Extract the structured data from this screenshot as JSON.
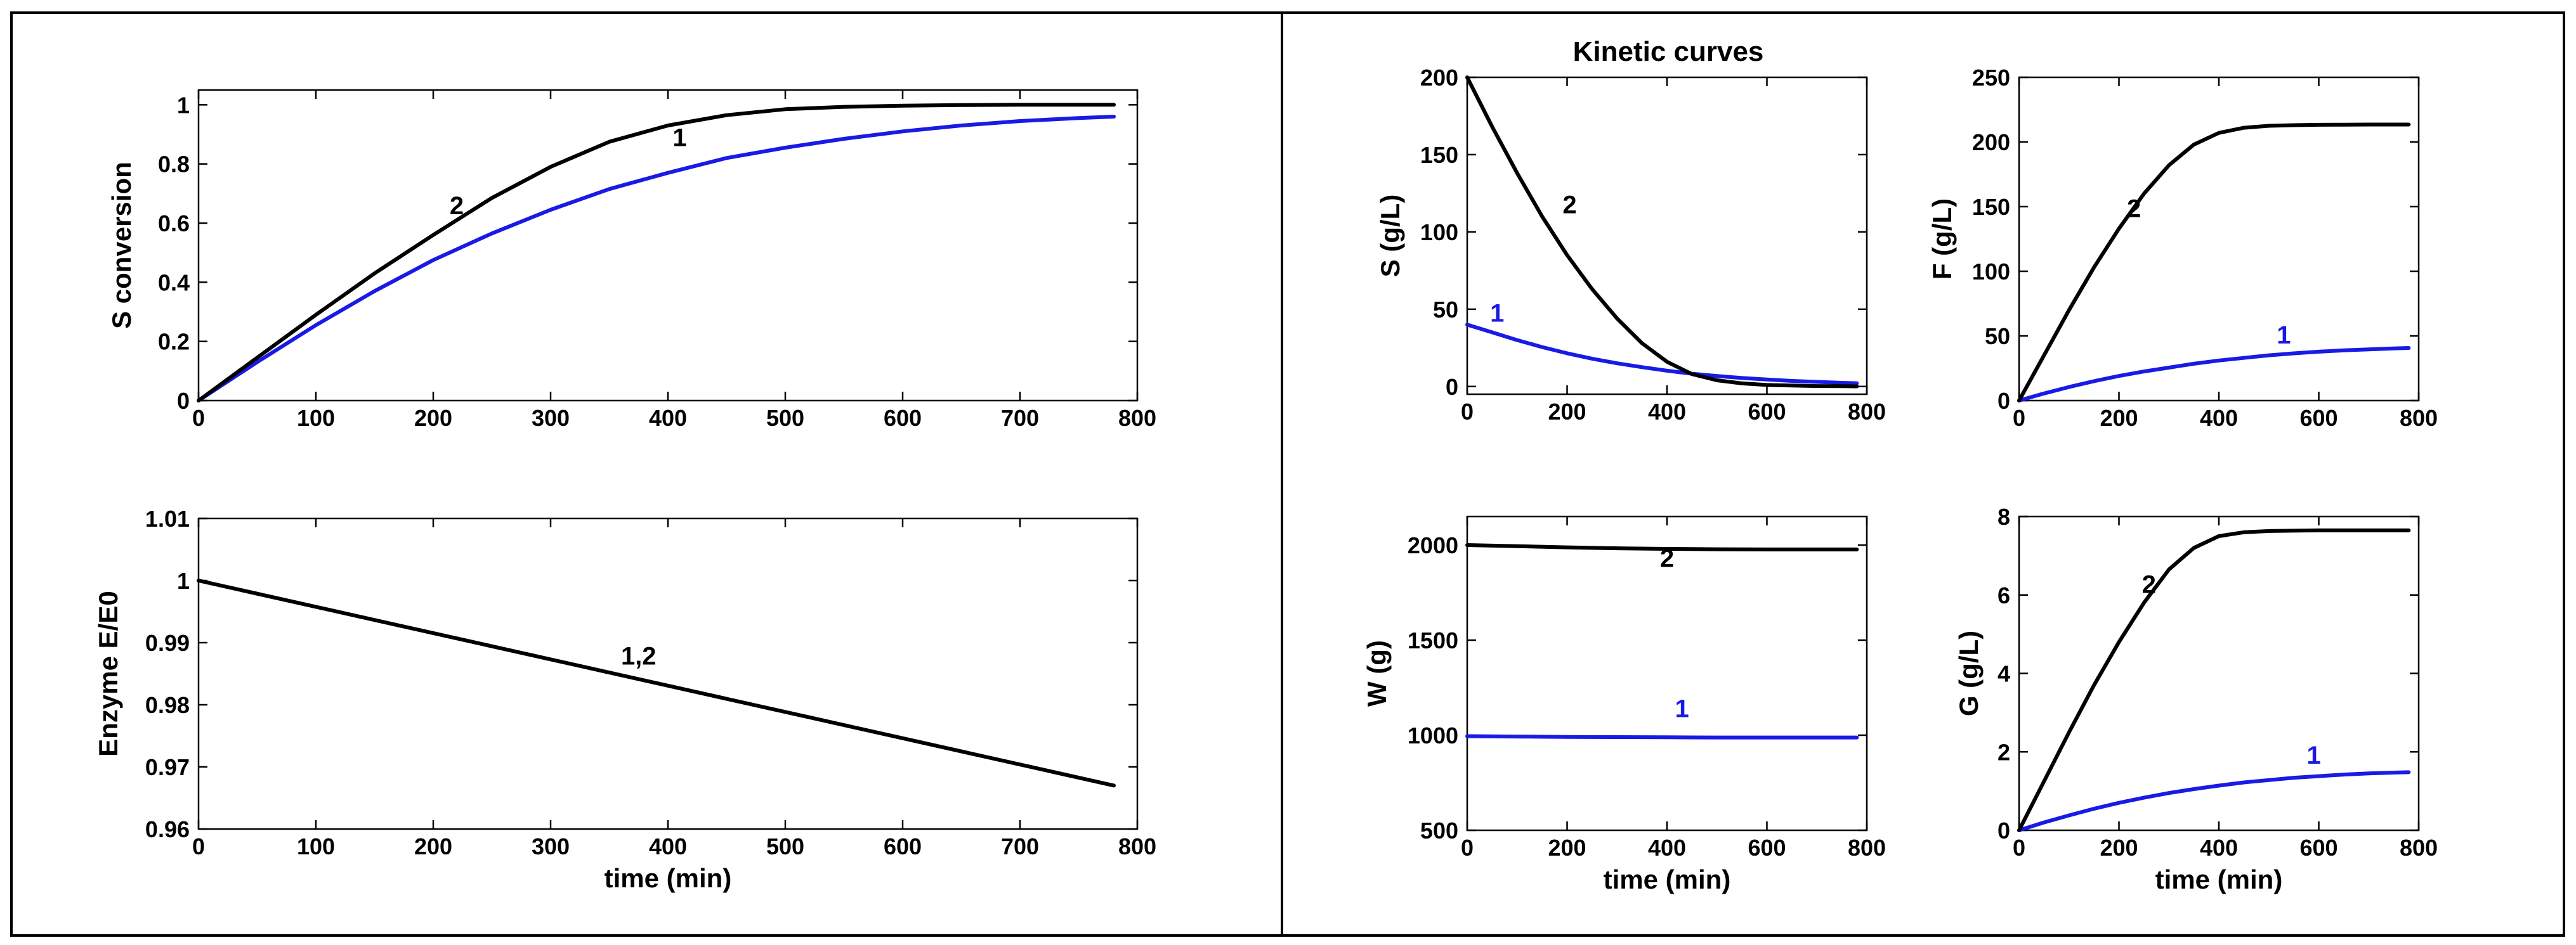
{
  "figure": {
    "title": "Kinetic curves",
    "colors": {
      "series1": "#1a1ae6",
      "series2": "#000000",
      "axis": "#000000",
      "background": "#ffffff"
    }
  },
  "chart_data": [
    {
      "id": "s_conversion",
      "type": "line",
      "title": "",
      "xlabel": "",
      "ylabel": "S conversion",
      "xlim": [
        0,
        800
      ],
      "ylim": [
        0,
        1.05
      ],
      "xticks": [
        0,
        100,
        200,
        300,
        400,
        500,
        600,
        700,
        800
      ],
      "yticks": [
        0,
        0.2,
        0.4,
        0.6,
        0.8,
        1
      ],
      "x": [
        0,
        50,
        100,
        150,
        200,
        250,
        300,
        350,
        400,
        450,
        500,
        550,
        600,
        650,
        700,
        750,
        780
      ],
      "series": [
        {
          "name": "1",
          "color": "#1a1ae6",
          "values": [
            0,
            0.13,
            0.255,
            0.37,
            0.475,
            0.565,
            0.645,
            0.715,
            0.77,
            0.82,
            0.855,
            0.885,
            0.91,
            0.93,
            0.945,
            0.955,
            0.96
          ]
        },
        {
          "name": "2",
          "color": "#000000",
          "values": [
            0,
            0.145,
            0.29,
            0.43,
            0.56,
            0.685,
            0.79,
            0.875,
            0.93,
            0.965,
            0.985,
            0.993,
            0.997,
            0.999,
            1.0,
            1.0,
            1.0
          ]
        }
      ],
      "annotations": [
        {
          "text": "2",
          "x": 220,
          "y": 0.63,
          "color": "#000000"
        },
        {
          "text": "1",
          "x": 410,
          "y": 0.86,
          "color": "#000000"
        }
      ]
    },
    {
      "id": "enzyme",
      "type": "line",
      "title": "",
      "xlabel": "time (min)",
      "ylabel": "Enzyme E/E0",
      "xlim": [
        0,
        800
      ],
      "ylim": [
        0.96,
        1.01
      ],
      "xticks": [
        0,
        100,
        200,
        300,
        400,
        500,
        600,
        700,
        800
      ],
      "yticks": [
        0.96,
        0.97,
        0.98,
        0.99,
        1,
        1.01
      ],
      "x": [
        0,
        780
      ],
      "series": [
        {
          "name": "1,2",
          "color": "#000000",
          "values": [
            1.0,
            0.967
          ]
        }
      ],
      "annotations": [
        {
          "text": "1,2",
          "x": 375,
          "y": 0.9865,
          "color": "#000000"
        }
      ]
    },
    {
      "id": "S",
      "type": "line",
      "title": "Kinetic curves",
      "xlabel": "",
      "ylabel": "S (g/L)",
      "xlim": [
        0,
        800
      ],
      "ylim": [
        -5,
        200
      ],
      "xticks": [
        0,
        200,
        400,
        600,
        800
      ],
      "yticks": [
        0,
        50,
        100,
        150,
        200
      ],
      "x": [
        0,
        50,
        100,
        150,
        200,
        250,
        300,
        350,
        400,
        450,
        500,
        550,
        600,
        650,
        700,
        750,
        780
      ],
      "series": [
        {
          "name": "1",
          "color": "#1a1ae6",
          "values": [
            40,
            35,
            30,
            25.5,
            21.5,
            18,
            15,
            12.5,
            10.2,
            8.3,
            6.8,
            5.5,
            4.5,
            3.6,
            3.0,
            2.4,
            2.1
          ]
        },
        {
          "name": "2",
          "color": "#000000",
          "values": [
            200,
            168,
            138,
            110,
            85,
            63,
            44,
            28,
            16,
            8,
            4,
            2,
            1,
            0.6,
            0.3,
            0.2,
            0.1
          ]
        }
      ],
      "annotations": [
        {
          "text": "2",
          "x": 205,
          "y": 112,
          "color": "#000000"
        },
        {
          "text": "1",
          "x": 60,
          "y": 42,
          "color": "#1a1ae6"
        }
      ]
    },
    {
      "id": "F",
      "type": "line",
      "title": "",
      "xlabel": "",
      "ylabel": "F (g/L)",
      "xlim": [
        0,
        800
      ],
      "ylim": [
        0,
        250
      ],
      "xticks": [
        0,
        200,
        400,
        600,
        800
      ],
      "yticks": [
        0,
        50,
        100,
        150,
        200,
        250
      ],
      "x": [
        0,
        50,
        100,
        150,
        200,
        250,
        300,
        350,
        400,
        450,
        500,
        550,
        600,
        650,
        700,
        750,
        780
      ],
      "series": [
        {
          "name": "1",
          "color": "#1a1ae6",
          "values": [
            0,
            5.5,
            10.5,
            15,
            19,
            22.5,
            25.5,
            28.5,
            31,
            33,
            35,
            36.5,
            37.8,
            38.8,
            39.6,
            40.3,
            40.7
          ]
        },
        {
          "name": "2",
          "color": "#000000",
          "values": [
            0,
            35,
            70,
            103,
            133,
            160,
            182,
            198,
            207,
            211,
            212.5,
            213,
            213.3,
            213.4,
            213.5,
            213.5,
            213.5
          ]
        }
      ],
      "annotations": [
        {
          "text": "2",
          "x": 230,
          "y": 142,
          "color": "#000000"
        },
        {
          "text": "1",
          "x": 530,
          "y": 44,
          "color": "#1a1ae6"
        }
      ]
    },
    {
      "id": "W",
      "type": "line",
      "title": "",
      "xlabel": "time (min)",
      "ylabel": "W (g)",
      "xlim": [
        0,
        800
      ],
      "ylim": [
        500,
        2150
      ],
      "xticks": [
        0,
        200,
        400,
        600,
        800
      ],
      "yticks": [
        500,
        1000,
        1500,
        2000
      ],
      "x": [
        0,
        100,
        200,
        300,
        400,
        500,
        600,
        700,
        780
      ],
      "series": [
        {
          "name": "1",
          "color": "#1a1ae6",
          "values": [
            995,
            993,
            991,
            990,
            989,
            988,
            988,
            988,
            988
          ]
        },
        {
          "name": "2",
          "color": "#000000",
          "values": [
            2000,
            1994,
            1988,
            1983,
            1980,
            1978,
            1977,
            1977,
            1977
          ]
        }
      ],
      "annotations": [
        {
          "text": "2",
          "x": 400,
          "y": 1885,
          "color": "#000000"
        },
        {
          "text": "1",
          "x": 430,
          "y": 1095,
          "color": "#1a1ae6"
        }
      ]
    },
    {
      "id": "G",
      "type": "line",
      "title": "",
      "xlabel": "time (min)",
      "ylabel": "G (g/L)",
      "xlim": [
        0,
        800
      ],
      "ylim": [
        0,
        8
      ],
      "xticks": [
        0,
        200,
        400,
        600,
        800
      ],
      "yticks": [
        0,
        2,
        4,
        6,
        8
      ],
      "x": [
        0,
        50,
        100,
        150,
        200,
        250,
        300,
        350,
        400,
        450,
        500,
        550,
        600,
        650,
        700,
        750,
        780
      ],
      "series": [
        {
          "name": "1",
          "color": "#1a1ae6",
          "values": [
            0,
            0.2,
            0.38,
            0.55,
            0.7,
            0.83,
            0.95,
            1.05,
            1.14,
            1.22,
            1.28,
            1.34,
            1.38,
            1.42,
            1.45,
            1.47,
            1.48
          ]
        },
        {
          "name": "2",
          "color": "#000000",
          "values": [
            0,
            1.25,
            2.5,
            3.7,
            4.8,
            5.8,
            6.65,
            7.2,
            7.5,
            7.6,
            7.63,
            7.64,
            7.65,
            7.65,
            7.65,
            7.65,
            7.65
          ]
        }
      ],
      "annotations": [
        {
          "text": "2",
          "x": 260,
          "y": 6.05,
          "color": "#000000"
        },
        {
          "text": "1",
          "x": 590,
          "y": 1.7,
          "color": "#1a1ae6"
        }
      ]
    }
  ]
}
